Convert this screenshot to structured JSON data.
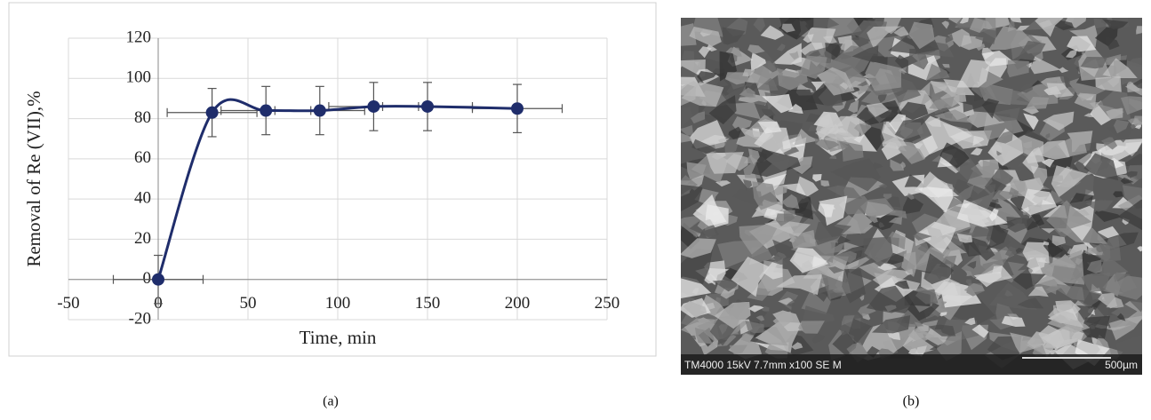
{
  "chart_data": {
    "type": "line",
    "x_label": "Time, min",
    "y_label": "Removal of Re (VII),%",
    "x": [
      0,
      30,
      60,
      90,
      120,
      150,
      200
    ],
    "series": [
      {
        "color": "#1f2d6b",
        "values": [
          0,
          83,
          84,
          84,
          86,
          86,
          85
        ],
        "y_errors": [
          12,
          12,
          12,
          12,
          12,
          12,
          12
        ],
        "x_errors": [
          25,
          25,
          25,
          25,
          25,
          25,
          25
        ]
      }
    ],
    "xlim": [
      -50,
      250
    ],
    "xticks": [
      -50,
      0,
      50,
      100,
      150,
      200,
      250
    ],
    "ylim": [
      -20,
      120
    ],
    "yticks": [
      -20,
      0,
      20,
      40,
      60,
      80,
      100,
      120
    ],
    "grid": true,
    "smooth": true
  },
  "image": {
    "info": "TM4000 15kV 7.7mm x100 SE M",
    "scale_bar": "500µm"
  },
  "captions": [
    "(a)",
    "(b)"
  ]
}
